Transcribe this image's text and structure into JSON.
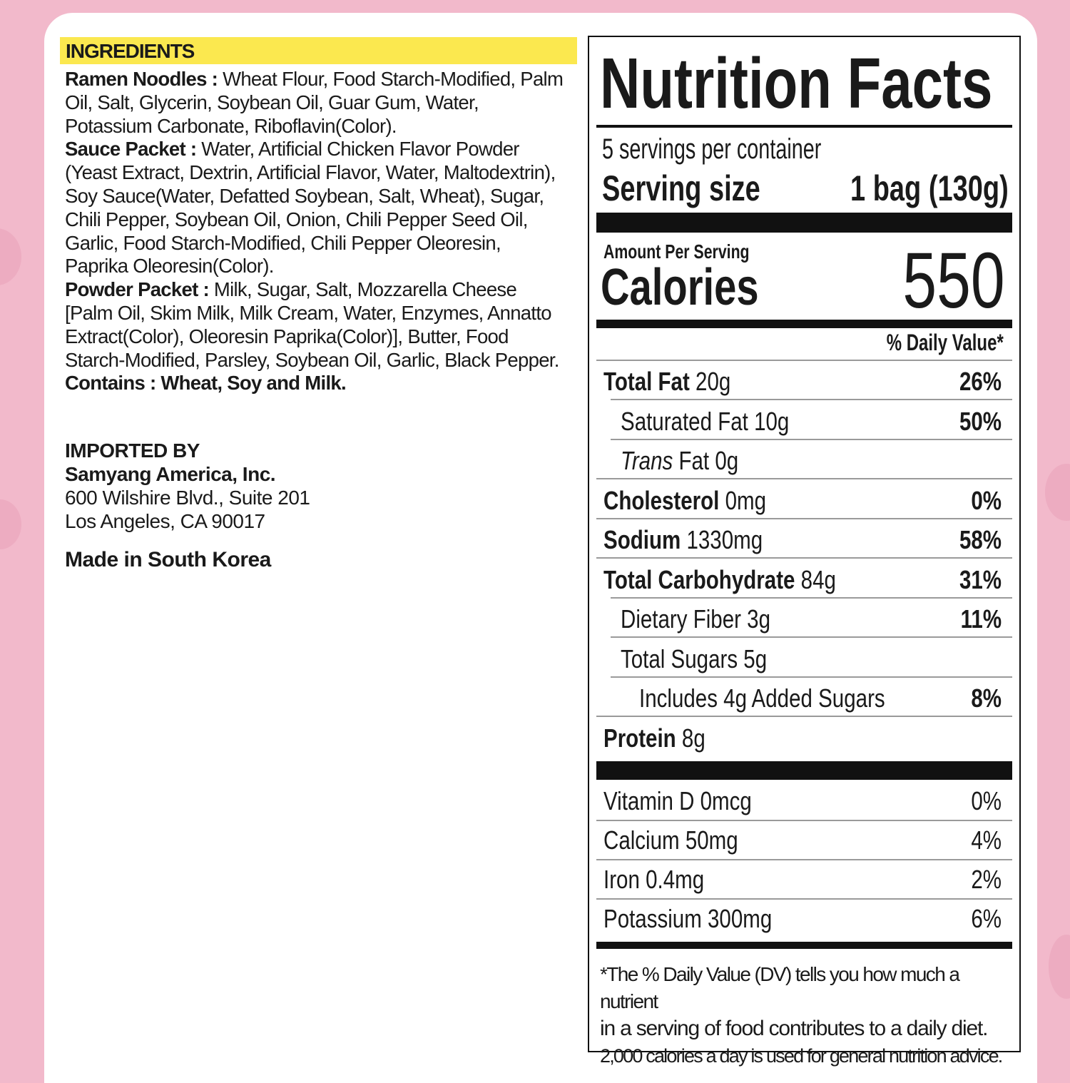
{
  "colors": {
    "background": "#f2b9cb",
    "highlight": "#fbe84f"
  },
  "ingredients": {
    "heading": "INGREDIENTS",
    "sections": [
      {
        "label": "Ramen Noodles :",
        "text": "Wheat Flour, Food Starch-Modified, Palm Oil, Salt, Glycerin, Soybean Oil, Guar Gum, Water, Potassium Carbonate, Riboflavin(Color)."
      },
      {
        "label": "Sauce Packet :",
        "text": "Water, Artificial Chicken Flavor Powder (Yeast Extract, Dextrin, Artificial Flavor, Water, Maltodextrin), Soy Sauce(Water, Defatted Soybean, Salt, Wheat), Sugar, Chili Pepper, Soybean Oil, Onion, Chili Pepper Seed Oil, Garlic, Food Starch-Modified, Chili Pepper Oleoresin, Paprika Oleoresin(Color)."
      },
      {
        "label": "Powder Packet :",
        "text": "Milk, Sugar, Salt, Mozzarella Cheese [Palm Oil, Skim Milk, Milk Cream, Water, Enzymes, Annatto Extract(Color), Oleoresin Paprika(Color)], Butter, Food Starch-Modified, Parsley, Soybean Oil, Garlic, Black Pepper."
      },
      {
        "label": "Contains :",
        "text": "Wheat, Soy and Milk."
      }
    ]
  },
  "importer": {
    "heading": "IMPORTED BY",
    "name": "Samyang America, Inc.",
    "address1": "600 Wilshire Blvd., Suite 201",
    "address2": "Los Angeles, CA 90017"
  },
  "origin": "Made in South Korea",
  "nutrition": {
    "title": "Nutrition Facts",
    "servings": "5 servings per container",
    "serving_size_label": "Serving size",
    "serving_size_value": "1 bag (130g)",
    "amount_per_serving": "Amount Per Serving",
    "calories_label": "Calories",
    "calories_value": "550",
    "dv_header": "% Daily Value*",
    "rows": [
      {
        "name": "Total Fat",
        "amount": "20g",
        "dv": "26%"
      },
      {
        "name": "Saturated Fat",
        "amount": "10g",
        "dv": "50%"
      },
      {
        "name": "Trans",
        "amount": "Fat 0g",
        "dv": ""
      },
      {
        "name": "Cholesterol",
        "amount": "0mg",
        "dv": "0%"
      },
      {
        "name": "Sodium",
        "amount": "1330mg",
        "dv": "58%"
      },
      {
        "name": "Total Carbohydrate",
        "amount": "84g",
        "dv": "31%"
      },
      {
        "name": "Dietary Fiber",
        "amount": "3g",
        "dv": "11%"
      },
      {
        "name": "Total Sugars",
        "amount": "5g",
        "dv": ""
      },
      {
        "name": "Includes 4g Added Sugars",
        "amount": "",
        "dv": "8%"
      },
      {
        "name": "Protein",
        "amount": "8g",
        "dv": ""
      }
    ],
    "vitamins": [
      {
        "text": "Vitamin D 0mcg",
        "dv": "0%"
      },
      {
        "text": "Calcium 50mg",
        "dv": "4%"
      },
      {
        "text": "Iron 0.4mg",
        "dv": "2%"
      },
      {
        "text": "Potassium 300mg",
        "dv": "6%"
      }
    ],
    "footnote": [
      "*The % Daily Value (DV) tells you how much a nutrient",
      "in a serving of food contributes to a daily diet.",
      "2,000 calories a day is used for general nutrition advice."
    ]
  }
}
